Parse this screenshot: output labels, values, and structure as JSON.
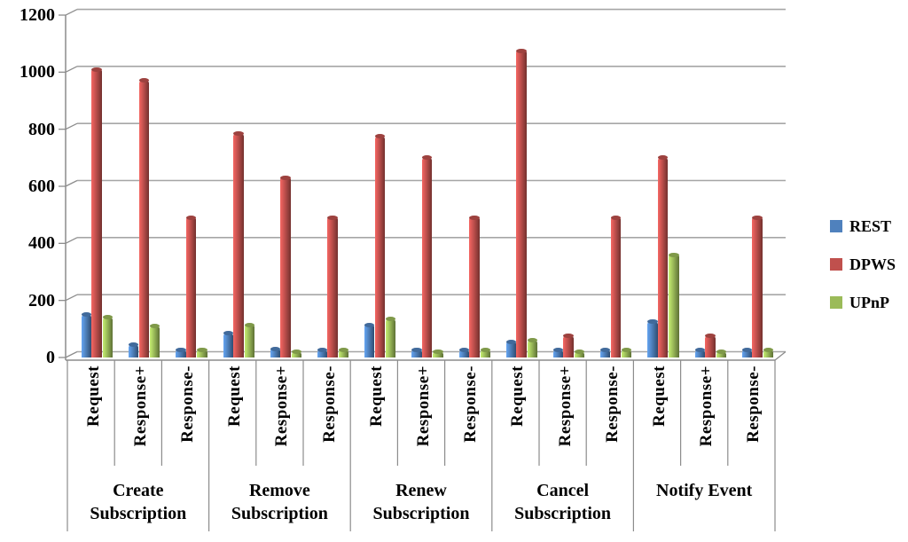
{
  "chart_data": {
    "type": "bar",
    "title": "",
    "xlabel": "",
    "ylabel": "",
    "ylim": [
      0,
      1200
    ],
    "y_ticks": [
      0,
      200,
      400,
      600,
      800,
      1000,
      1200
    ],
    "grid": true,
    "legend_position": "right",
    "groups": [
      "Create\nSubscription",
      "Remove\nSubscription",
      "Renew\nSubscription",
      "Cancel\nSubscription",
      "Notify Event"
    ],
    "subcategories": [
      "Request",
      "Response+",
      "Response-"
    ],
    "series": [
      {
        "name": "REST",
        "color": "#4F81BD",
        "values": [
          150,
          45,
          25,
          85,
          30,
          25,
          115,
          25,
          25,
          55,
          25,
          25,
          125,
          25,
          25
        ]
      },
      {
        "name": "DPWS",
        "color": "#C0504D",
        "values": [
          1010,
          970,
          490,
          785,
          630,
          490,
          775,
          700,
          490,
          1075,
          75,
          490,
          700,
          75,
          490
        ]
      },
      {
        "name": "UPnP",
        "color": "#9BBB59",
        "values": [
          140,
          110,
          25,
          115,
          20,
          25,
          135,
          20,
          25,
          60,
          20,
          25,
          360,
          20,
          25
        ]
      }
    ],
    "line_colors": {
      "gridline": "#a6a6a6",
      "axis": "#8c8c8c"
    }
  }
}
